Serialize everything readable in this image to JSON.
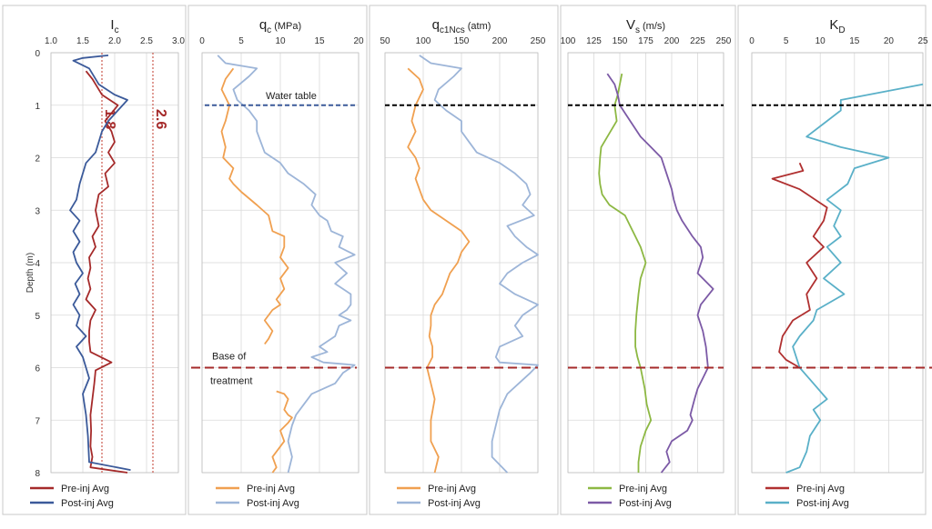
{
  "depth_label": "Depth (m)",
  "depth_ticks": [
    "0",
    "1",
    "2",
    "3",
    "4",
    "5",
    "6",
    "7",
    "8"
  ],
  "chart_data": [
    {
      "id": "ic",
      "type": "line",
      "title_main": "I",
      "title_sub": "c",
      "title_unit": "",
      "xlim": [
        1.0,
        3.0
      ],
      "xticks": [
        "1.0",
        "1.5",
        "2.0",
        "2.5",
        "3.0"
      ],
      "ylim": [
        0,
        8
      ],
      "vlines": [
        {
          "x": 1.8,
          "label": "1.8",
          "color": "#c0392b"
        },
        {
          "x": 2.6,
          "label": "2.6",
          "color": "#c0392b"
        }
      ],
      "series": [
        {
          "name": "Pre-inj Avg",
          "color": "#a52a2a",
          "x": [
            1.55,
            1.65,
            1.7,
            1.8,
            2.05,
            1.85,
            1.95,
            2.0,
            1.9,
            2.0,
            1.85,
            1.9,
            1.75,
            1.7,
            1.75,
            1.65,
            1.7,
            1.6,
            1.62,
            1.58,
            1.62,
            1.55,
            1.7,
            1.62,
            1.6,
            1.6,
            1.62,
            1.95,
            1.7,
            1.68,
            1.65,
            1.62,
            1.63,
            1.62,
            1.65,
            1.62,
            2.2
          ],
          "depth": [
            0.35,
            0.5,
            0.6,
            0.8,
            1.0,
            1.3,
            1.5,
            1.7,
            1.9,
            2.1,
            2.3,
            2.55,
            2.7,
            3.0,
            3.3,
            3.5,
            3.7,
            3.9,
            4.1,
            4.3,
            4.5,
            4.7,
            4.9,
            5.1,
            5.3,
            5.5,
            5.7,
            5.9,
            6.05,
            6.3,
            6.6,
            6.9,
            7.2,
            7.5,
            7.7,
            7.9,
            8.0
          ]
        },
        {
          "name": "Post-inj Avg",
          "color": "#3b5a9a",
          "x": [
            1.9,
            1.5,
            1.35,
            1.6,
            1.75,
            2.0,
            2.2,
            2.05,
            1.9,
            1.8,
            1.75,
            1.7,
            1.55,
            1.5,
            1.45,
            1.4,
            1.3,
            1.45,
            1.35,
            1.45,
            1.35,
            1.4,
            1.5,
            1.38,
            1.45,
            1.35,
            1.45,
            1.4,
            1.55,
            1.4,
            1.5,
            1.55,
            1.6,
            1.5,
            1.55,
            1.58,
            1.6,
            2.25
          ],
          "depth": [
            0.05,
            0.1,
            0.15,
            0.3,
            0.6,
            0.8,
            0.9,
            1.1,
            1.3,
            1.5,
            1.7,
            1.9,
            2.1,
            2.3,
            2.5,
            2.8,
            3.0,
            3.2,
            3.4,
            3.6,
            3.8,
            4.0,
            4.2,
            4.4,
            4.6,
            4.8,
            5.0,
            5.2,
            5.4,
            5.6,
            5.8,
            6.0,
            6.2,
            6.5,
            6.9,
            7.3,
            7.8,
            7.95
          ]
        }
      ]
    },
    {
      "id": "qc",
      "type": "line",
      "title_main": "q",
      "title_sub": "c",
      "title_unit": " (MPa)",
      "xlim": [
        0,
        20
      ],
      "xticks": [
        "0",
        "5",
        "10",
        "15",
        "20"
      ],
      "ylim": [
        0,
        8
      ],
      "series": [
        {
          "name": "Pre-inj Avg",
          "color": "#f0a050",
          "x": [
            4,
            3,
            2.5,
            3.5,
            3,
            2.5,
            3,
            2.7,
            4,
            3.5,
            4,
            5,
            7,
            8.5,
            9,
            10.5,
            10.5,
            10,
            11,
            10,
            10.5,
            9.5,
            10,
            9,
            8,
            9,
            8.5,
            8
          ],
          "depth": [
            0.3,
            0.5,
            0.7,
            1.0,
            1.3,
            1.5,
            1.8,
            2.0,
            2.2,
            2.4,
            2.5,
            2.65,
            2.9,
            3.1,
            3.4,
            3.5,
            3.7,
            3.9,
            4.1,
            4.3,
            4.5,
            4.7,
            4.8,
            4.9,
            5.1,
            5.3,
            5.45,
            5.55
          ]
        },
        {
          "name": "Pre-inj Avg",
          "color": "#f0a050",
          "x": [
            9.5,
            10.5,
            11,
            10.5,
            11,
            11.5,
            11,
            10,
            10.5,
            9.5,
            9,
            9.5,
            9
          ],
          "depth": [
            6.45,
            6.5,
            6.6,
            6.8,
            6.9,
            6.95,
            7.05,
            7.2,
            7.4,
            7.6,
            7.7,
            7.9,
            8.0
          ]
        },
        {
          "name": "Post-inj Avg",
          "color": "#9db5d8",
          "x": [
            2,
            3,
            5,
            7,
            6,
            4,
            4.5,
            6,
            7,
            7,
            7.5,
            8,
            10,
            11,
            13,
            14.5,
            14,
            15,
            16,
            16.5,
            18,
            17.5,
            19.5,
            17,
            18.5,
            17,
            19,
            19,
            18.5,
            17.5,
            19,
            17.5,
            17,
            16,
            15,
            16,
            14,
            15.5,
            19.5,
            18,
            17,
            14,
            13,
            12,
            11.5,
            11,
            11.5,
            11
          ],
          "depth": [
            0.05,
            0.2,
            0.25,
            0.3,
            0.45,
            0.7,
            0.9,
            1.1,
            1.3,
            1.5,
            1.7,
            1.9,
            2.1,
            2.3,
            2.5,
            2.7,
            2.9,
            3.1,
            3.2,
            3.4,
            3.5,
            3.7,
            3.85,
            4.0,
            4.2,
            4.4,
            4.6,
            4.8,
            4.9,
            5.0,
            5.1,
            5.2,
            5.4,
            5.5,
            5.6,
            5.7,
            5.8,
            5.9,
            5.95,
            6.1,
            6.3,
            6.5,
            6.7,
            6.9,
            7.1,
            7.4,
            7.7,
            8.0
          ]
        }
      ]
    },
    {
      "id": "qc1ncs",
      "type": "line",
      "title_main": "q",
      "title_sub": "c1Ncs",
      "title_unit": " (atm)",
      "xlim": [
        50,
        250
      ],
      "xticks": [
        "50",
        "100",
        "150",
        "200",
        "250"
      ],
      "ylim": [
        0,
        8
      ],
      "series": [
        {
          "name": "Pre-inj Avg",
          "color": "#f0a050",
          "x": [
            80,
            95,
            100,
            90,
            85,
            90,
            80,
            90,
            95,
            90,
            95,
            100,
            110,
            130,
            150,
            155,
            160,
            150,
            145,
            135,
            130,
            125,
            115,
            110,
            110,
            108,
            112,
            112,
            105,
            110,
            115,
            110,
            110,
            120,
            115
          ],
          "depth": [
            0.3,
            0.5,
            0.7,
            1.0,
            1.3,
            1.5,
            1.8,
            2.0,
            2.2,
            2.4,
            2.6,
            2.8,
            3.0,
            3.2,
            3.4,
            3.5,
            3.6,
            3.8,
            4.0,
            4.2,
            4.4,
            4.6,
            4.8,
            5.0,
            5.2,
            5.4,
            5.6,
            5.8,
            6.0,
            6.3,
            6.6,
            7.0,
            7.4,
            7.7,
            8.0
          ]
        },
        {
          "name": "Post-inj Avg",
          "color": "#9db5d8",
          "x": [
            95,
            110,
            130,
            150,
            140,
            120,
            115,
            130,
            150,
            150,
            160,
            170,
            200,
            220,
            235,
            240,
            230,
            245,
            210,
            220,
            235,
            250,
            230,
            210,
            200,
            220,
            250,
            240,
            230,
            220,
            230,
            200,
            195,
            200,
            250,
            240,
            225,
            210,
            200,
            195,
            190,
            190,
            210
          ],
          "depth": [
            0.05,
            0.2,
            0.25,
            0.3,
            0.45,
            0.7,
            0.9,
            1.1,
            1.3,
            1.5,
            1.7,
            1.9,
            2.1,
            2.3,
            2.5,
            2.7,
            2.9,
            3.1,
            3.3,
            3.5,
            3.7,
            3.85,
            4.0,
            4.2,
            4.4,
            4.6,
            4.8,
            4.9,
            5.0,
            5.2,
            5.4,
            5.6,
            5.8,
            5.9,
            5.95,
            6.1,
            6.3,
            6.5,
            6.8,
            7.1,
            7.4,
            7.7,
            8.0
          ]
        }
      ]
    },
    {
      "id": "vs",
      "type": "line",
      "title_main": "V",
      "title_sub": "s",
      "title_unit": " (m/s)",
      "xlim": [
        100,
        250
      ],
      "xticks": [
        "100",
        "125",
        "150",
        "175",
        "200",
        "225",
        "250"
      ],
      "ylim": [
        0,
        8
      ],
      "series": [
        {
          "name": "Pre-inj Avg",
          "color": "#8db843",
          "x": [
            152,
            150,
            148,
            145,
            147,
            138,
            132,
            131,
            130,
            131,
            133,
            140,
            155,
            160,
            165,
            170,
            175,
            170,
            168,
            166,
            165,
            165,
            167,
            170,
            172,
            174,
            176,
            180,
            175,
            170,
            168,
            168
          ],
          "depth": [
            0.4,
            0.6,
            0.8,
            1.0,
            1.3,
            1.6,
            1.8,
            2.0,
            2.3,
            2.5,
            2.7,
            2.9,
            3.1,
            3.3,
            3.5,
            3.7,
            4.0,
            4.3,
            4.6,
            5.0,
            5.3,
            5.6,
            5.8,
            6.0,
            6.2,
            6.4,
            6.7,
            7.0,
            7.2,
            7.5,
            7.8,
            8.0
          ]
        },
        {
          "name": "Post-inj Avg",
          "color": "#7c5aa6",
          "x": [
            138,
            145,
            148,
            150,
            160,
            170,
            180,
            190,
            195,
            200,
            202,
            205,
            210,
            220,
            228,
            230,
            225,
            240,
            228,
            225,
            230,
            233,
            235,
            230,
            225,
            222,
            218,
            220,
            215,
            200,
            195,
            198,
            190
          ],
          "depth": [
            0.4,
            0.6,
            0.8,
            1.0,
            1.3,
            1.6,
            1.8,
            2.0,
            2.3,
            2.6,
            2.8,
            3.0,
            3.2,
            3.5,
            3.7,
            3.9,
            4.2,
            4.5,
            4.8,
            5.0,
            5.3,
            5.6,
            6.0,
            6.2,
            6.4,
            6.6,
            6.9,
            7.0,
            7.2,
            7.4,
            7.6,
            7.8,
            8.0
          ]
        }
      ]
    },
    {
      "id": "kd",
      "type": "line",
      "title_main": "K",
      "title_sub": "D",
      "title_unit": "",
      "xlim": [
        0,
        25
      ],
      "xticks": [
        "0",
        "5",
        "10",
        "15",
        "20",
        "25"
      ],
      "ylim": [
        0,
        8
      ],
      "series": [
        {
          "name": "Pre-inj Avg",
          "color": "#b03030",
          "x": [
            7,
            7.5,
            3,
            7,
            11,
            10.5,
            9,
            10.5,
            8,
            9.5,
            8,
            8.5,
            6,
            4.5,
            4,
            5,
            7
          ],
          "depth": [
            2.1,
            2.25,
            2.4,
            2.6,
            2.95,
            3.2,
            3.5,
            3.7,
            4.0,
            4.3,
            4.6,
            4.9,
            5.1,
            5.4,
            5.7,
            5.85,
            6.0
          ]
        },
        {
          "name": "Post-inj Avg",
          "color": "#5ab0c8",
          "x": [
            25,
            13,
            13,
            11,
            8,
            13,
            20,
            15,
            14,
            11,
            13,
            12,
            13,
            11,
            13,
            10.5,
            13.5,
            9.5,
            9,
            7,
            6,
            7,
            9,
            11,
            9,
            10,
            8.5,
            8,
            7,
            5
          ],
          "depth": [
            0.6,
            0.9,
            1.1,
            1.3,
            1.6,
            1.8,
            2.0,
            2.2,
            2.5,
            2.8,
            3.0,
            3.3,
            3.5,
            3.7,
            4.0,
            4.3,
            4.6,
            4.9,
            5.1,
            5.4,
            5.6,
            6.0,
            6.3,
            6.6,
            6.8,
            7.0,
            7.3,
            7.6,
            7.9,
            8.0
          ]
        }
      ]
    }
  ],
  "annotations": {
    "water_table": {
      "depth": 1.0,
      "label": "Water table"
    },
    "base_of_treatment": {
      "depth": 6.0,
      "label_line1": "Base of",
      "label_line2": "treatment"
    }
  },
  "legends": [
    [
      {
        "label": "Pre-inj Avg",
        "color": "#a52a2a"
      },
      {
        "label": "Post-inj Avg",
        "color": "#3b5a9a"
      }
    ],
    [
      {
        "label": "Pre-inj Avg",
        "color": "#f0a050"
      },
      {
        "label": "Post-inj Avg",
        "color": "#9db5d8"
      }
    ],
    [
      {
        "label": "Pre-inj Avg",
        "color": "#f0a050"
      },
      {
        "label": "Post-inj Avg",
        "color": "#9db5d8"
      }
    ],
    [
      {
        "label": "Pre-inj Avg",
        "color": "#8db843"
      },
      {
        "label": "Post-inj Avg",
        "color": "#7c5aa6"
      }
    ],
    [
      {
        "label": "Pre-inj Avg",
        "color": "#b03030"
      },
      {
        "label": "Post-inj Avg",
        "color": "#5ab0c8"
      }
    ]
  ]
}
